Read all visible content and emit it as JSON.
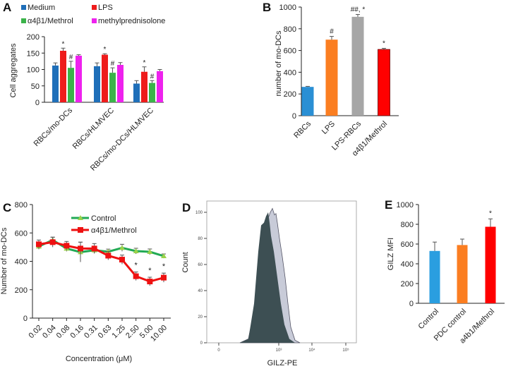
{
  "chart_data": [
    {
      "panel": "A",
      "type": "bar",
      "ylabel": "Cell aggregates",
      "ylim": [
        0,
        200
      ],
      "yticks": [
        0,
        50,
        100,
        150,
        200
      ],
      "categories": [
        "RBCs/mo-DCs",
        "RBCs/HLMVEC",
        "RBCs/mo-DCs/HLMVEC"
      ],
      "legend": "top",
      "series": [
        {
          "name": "Medium",
          "color": "#1f6fb9",
          "values": [
            112,
            110,
            57
          ],
          "errors": [
            8,
            10,
            9
          ],
          "annotations": [
            "",
            "",
            ""
          ]
        },
        {
          "name": "LPS",
          "color": "#ee1c1c",
          "values": [
            157,
            145,
            93
          ],
          "errors": [
            8,
            3,
            15
          ],
          "annotations": [
            "*",
            "*",
            "*"
          ]
        },
        {
          "name": "α4β1/Methrol",
          "color": "#3bb34a",
          "values": [
            105,
            90,
            59
          ],
          "errors": [
            20,
            15,
            7
          ],
          "annotations": [
            "#",
            "#",
            "#"
          ]
        },
        {
          "name": "methylprednisolone",
          "color": "#ee22ee",
          "values": [
            142,
            114,
            95
          ],
          "errors": [
            3,
            7,
            5
          ],
          "annotations": [
            "",
            "",
            ""
          ]
        }
      ]
    },
    {
      "panel": "B",
      "type": "bar",
      "ylabel": "number of mo-DCs",
      "ylim": [
        0,
        1000
      ],
      "yticks": [
        0,
        200,
        400,
        600,
        800,
        1000
      ],
      "categories": [
        "RBCs",
        "LPS",
        "LPS-RBCs",
        "α4β1/Methrol"
      ],
      "values": [
        265,
        700,
        910,
        610
      ],
      "errors": [
        5,
        30,
        22,
        10
      ],
      "colors": [
        "#2a8fd4",
        "#fb7e21",
        "#a6a6a6",
        "#ff0000"
      ],
      "annotations": [
        "",
        "#",
        "##, *",
        "*"
      ]
    },
    {
      "panel": "C",
      "type": "line",
      "xlabel": "Concentration (μM)",
      "ylabel": "Number of mo-DCs",
      "ylim": [
        0,
        800
      ],
      "yticks": [
        0,
        200,
        400,
        600,
        800
      ],
      "categories": [
        "0.02",
        "0.04",
        "0.08",
        "0.16",
        "0.31",
        "0.63",
        "1.25",
        "2.50",
        "5.00",
        "10.00"
      ],
      "legend": "top-right",
      "series": [
        {
          "name": "Control",
          "color": "#22aa55",
          "marker": "triangle",
          "values": [
            505,
            550,
            490,
            465,
            478,
            468,
            495,
            472,
            467,
            437
          ],
          "errors": [
            20,
            20,
            20,
            70,
            20,
            18,
            25,
            20,
            20,
            15
          ]
        },
        {
          "name": "α4β1/Methrol",
          "color": "#ee1111",
          "marker": "square",
          "values": [
            520,
            535,
            510,
            490,
            490,
            440,
            412,
            295,
            258,
            285
          ],
          "errors": [
            30,
            35,
            30,
            45,
            35,
            30,
            32,
            30,
            30,
            32
          ]
        }
      ],
      "annotations": [
        "",
        "",
        "",
        "",
        "",
        "",
        "",
        "*",
        "*",
        "*"
      ]
    },
    {
      "panel": "D",
      "type": "area",
      "xlabel": "GILZ-PE",
      "ylabel": "Count",
      "xscale": "log",
      "xticks": [
        "0",
        "10³",
        "10⁴",
        "10⁵"
      ],
      "yticks": [
        0,
        20,
        40,
        60,
        80,
        100
      ],
      "ylim": [
        0,
        110
      ],
      "colors": {
        "front": "#3d4f53",
        "back": "#c8cbd8"
      }
    },
    {
      "panel": "E",
      "type": "bar",
      "ylabel": "GILZ MFI",
      "ylim": [
        0,
        1000
      ],
      "yticks": [
        0,
        200,
        400,
        600,
        800,
        1000
      ],
      "categories": [
        "Control",
        "PDC control",
        "a4b1/Methrol"
      ],
      "values": [
        530,
        590,
        775
      ],
      "errors": [
        90,
        60,
        80
      ],
      "colors": [
        "#2a9ee0",
        "#fb7e21",
        "#ff0000"
      ],
      "annotations": [
        "",
        "",
        "*"
      ]
    }
  ],
  "panel_labels": [
    "A",
    "B",
    "C",
    "D",
    "E"
  ]
}
